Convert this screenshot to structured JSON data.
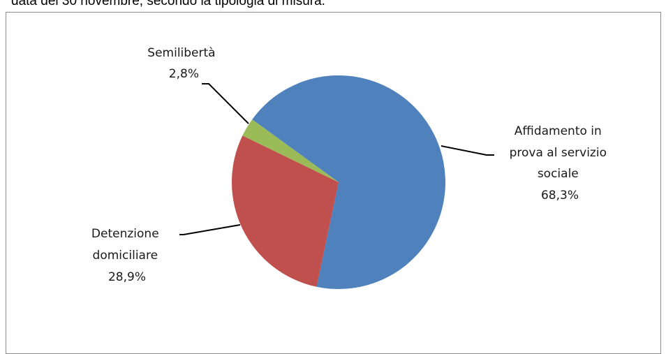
{
  "caption": "data del 30 novembre, secondo la tipologia di misura.",
  "chart_data": {
    "type": "pie",
    "title": "",
    "slices": [
      {
        "label_lines": [
          "Affidamento in",
          "prova al servizio",
          "sociale"
        ],
        "value_label": "68,3%",
        "value": 68.3,
        "color": "#4f81bd"
      },
      {
        "label_lines": [
          "Detenzione",
          "domiciliare"
        ],
        "value_label": "28,9%",
        "value": 28.9,
        "color": "#c0504d"
      },
      {
        "label_lines": [
          "Semilibertà"
        ],
        "value_label": "2,8%",
        "value": 2.8,
        "color": "#9bbb59"
      }
    ]
  }
}
